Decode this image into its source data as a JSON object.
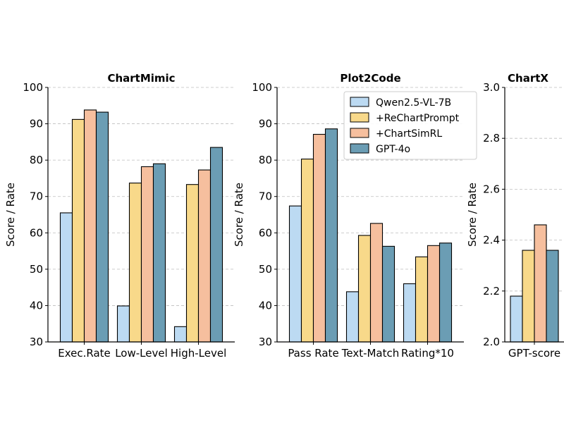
{
  "legend": [
    "Qwen2.5-VL-7B",
    "+ReChartPrompt",
    "+ChartSimRL",
    "GPT-4o"
  ],
  "colors": {
    "Qwen2.5-VL-7B": "#bcdaf2",
    "+ReChartPrompt": "#f8d98a",
    "+ChartSimRL": "#f6bf9e",
    "GPT-4o": "#6b9db4"
  },
  "chart_data": [
    {
      "type": "bar",
      "title": "ChartMimic",
      "ylabel": "Score / Rate",
      "xlabel": "",
      "ylim": [
        30,
        100
      ],
      "yticks": [
        "30",
        "40",
        "50",
        "60",
        "70",
        "80",
        "90",
        "100"
      ],
      "grid": true,
      "categories": [
        "Exec.Rate",
        "Low-Level",
        "High-Level"
      ],
      "series": [
        {
          "name": "Qwen2.5-VL-7B",
          "values": [
            65.5,
            39.9,
            34.2
          ]
        },
        {
          "name": "+ReChartPrompt",
          "values": [
            91.2,
            73.7,
            73.3
          ]
        },
        {
          "name": "+ChartSimRL",
          "values": [
            93.8,
            78.2,
            77.3
          ]
        },
        {
          "name": "GPT-4o",
          "values": [
            93.2,
            79.0,
            83.5
          ]
        }
      ]
    },
    {
      "type": "bar",
      "title": "Plot2Code",
      "ylabel": "Score / Rate",
      "xlabel": "",
      "ylim": [
        30,
        100
      ],
      "yticks": [
        "30",
        "40",
        "50",
        "60",
        "70",
        "80",
        "90",
        "100"
      ],
      "grid": true,
      "legend_position": "top-right",
      "categories": [
        "Pass Rate",
        "Text-Match",
        "Rating*10"
      ],
      "series": [
        {
          "name": "Qwen2.5-VL-7B",
          "values": [
            67.4,
            43.8,
            46.0
          ]
        },
        {
          "name": "+ReChartPrompt",
          "values": [
            80.3,
            59.3,
            53.4
          ]
        },
        {
          "name": "+ChartSimRL",
          "values": [
            87.1,
            62.6,
            56.5
          ]
        },
        {
          "name": "GPT-4o",
          "values": [
            88.6,
            56.3,
            57.2
          ]
        }
      ]
    },
    {
      "type": "bar",
      "title": "ChartX",
      "ylabel": "Score / Rate",
      "xlabel": "",
      "ylim": [
        2.0,
        3.0
      ],
      "yticks": [
        "2.0",
        "2.2",
        "2.4",
        "2.6",
        "2.8",
        "3.0"
      ],
      "grid": true,
      "categories": [
        "GPT-score"
      ],
      "series": [
        {
          "name": "Qwen2.5-VL-7B",
          "values": [
            2.18
          ]
        },
        {
          "name": "+ReChartPrompt",
          "values": [
            2.36
          ]
        },
        {
          "name": "+ChartSimRL",
          "values": [
            2.46
          ]
        },
        {
          "name": "GPT-4o",
          "values": [
            2.36
          ]
        }
      ]
    }
  ]
}
